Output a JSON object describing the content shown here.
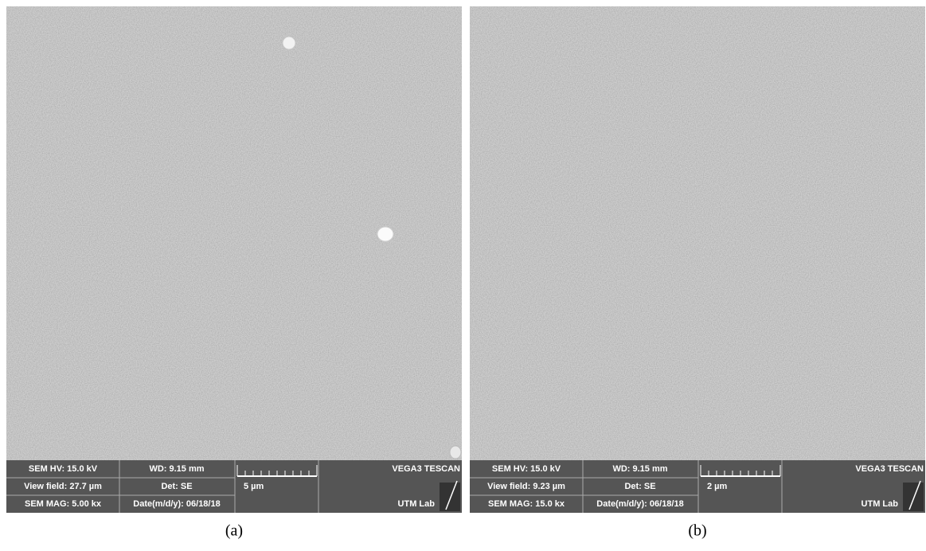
{
  "panels": [
    {
      "caption": "(a)",
      "info": {
        "hv": "SEM HV: 15.0 kV",
        "view_field": "View field: 27.7 µm",
        "mag": "SEM MAG: 5.00 kx",
        "wd": "WD: 9.15 mm",
        "det": "Det: SE",
        "date": "Date(m/d/y): 06/18/18",
        "scale": "5 µm",
        "brand": "VEGA3 TESCAN",
        "lab": "UTM Lab"
      }
    },
    {
      "caption": "(b)",
      "info": {
        "hv": "SEM HV: 15.0 kV",
        "view_field": "View field: 9.23 µm",
        "mag": "SEM MAG: 15.0 kx",
        "wd": "WD: 9.15 mm",
        "det": "Det: SE",
        "date": "Date(m/d/y): 06/18/18",
        "scale": "2 µm",
        "brand": "VEGA3 TESCAN",
        "lab": "UTM Lab"
      }
    }
  ]
}
